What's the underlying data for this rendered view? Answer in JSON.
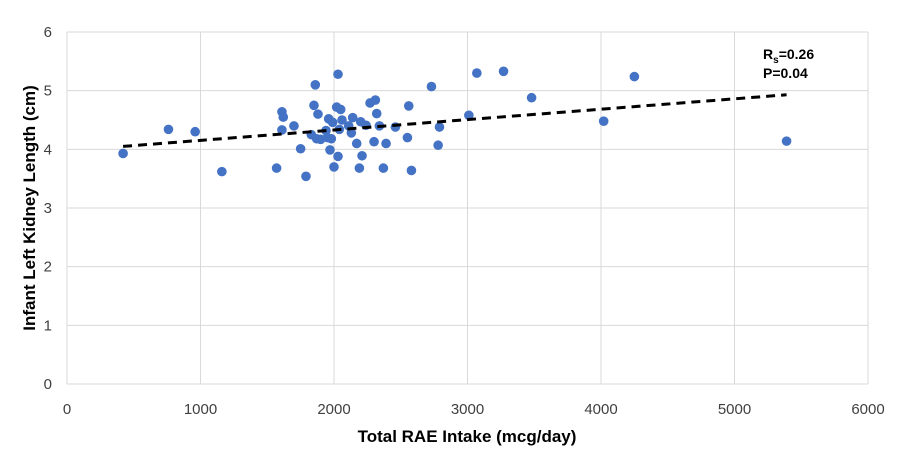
{
  "chart_data": {
    "type": "scatter",
    "xlabel": "Total RAE Intake (mcg/day)",
    "ylabel": "Infant Left Kidney Length (cm)",
    "xlim": [
      0,
      6000
    ],
    "ylim": [
      0,
      6
    ],
    "x_ticks": [
      "0",
      "1000",
      "2000",
      "3000",
      "4000",
      "5000",
      "6000"
    ],
    "y_ticks": [
      "0",
      "1",
      "2",
      "3",
      "4",
      "5",
      "6"
    ],
    "grid": true,
    "colors": {
      "points": "#4472c4",
      "trendline": "#000000",
      "grid": "#d9d9d9"
    },
    "annotation": {
      "r_main": "R",
      "r_sub": "s",
      "r_value": "=0.26",
      "p_text": "P=0.04"
    },
    "trendline": {
      "style": "dashed",
      "x": [
        420,
        5390
      ],
      "y": [
        4.05,
        4.93
      ]
    },
    "points": [
      {
        "x": 420,
        "y": 3.93
      },
      {
        "x": 760,
        "y": 4.34
      },
      {
        "x": 960,
        "y": 4.3
      },
      {
        "x": 1160,
        "y": 3.62
      },
      {
        "x": 1570,
        "y": 3.68
      },
      {
        "x": 1610,
        "y": 4.64
      },
      {
        "x": 1620,
        "y": 4.55
      },
      {
        "x": 1610,
        "y": 4.33
      },
      {
        "x": 1700,
        "y": 4.4
      },
      {
        "x": 1750,
        "y": 4.01
      },
      {
        "x": 1790,
        "y": 3.54
      },
      {
        "x": 1830,
        "y": 4.25
      },
      {
        "x": 1850,
        "y": 4.75
      },
      {
        "x": 1860,
        "y": 5.1
      },
      {
        "x": 1870,
        "y": 4.18
      },
      {
        "x": 1880,
        "y": 4.6
      },
      {
        "x": 1900,
        "y": 4.17
      },
      {
        "x": 1940,
        "y": 4.32
      },
      {
        "x": 1950,
        "y": 4.2
      },
      {
        "x": 1960,
        "y": 4.52
      },
      {
        "x": 1970,
        "y": 3.99
      },
      {
        "x": 1980,
        "y": 4.18
      },
      {
        "x": 1990,
        "y": 4.46
      },
      {
        "x": 2000,
        "y": 3.7
      },
      {
        "x": 2020,
        "y": 4.72
      },
      {
        "x": 2030,
        "y": 5.28
      },
      {
        "x": 2030,
        "y": 3.88
      },
      {
        "x": 2040,
        "y": 4.34
      },
      {
        "x": 2050,
        "y": 4.68
      },
      {
        "x": 2060,
        "y": 4.5
      },
      {
        "x": 2110,
        "y": 4.4
      },
      {
        "x": 2130,
        "y": 4.28
      },
      {
        "x": 2140,
        "y": 4.54
      },
      {
        "x": 2170,
        "y": 4.1
      },
      {
        "x": 2190,
        "y": 3.68
      },
      {
        "x": 2200,
        "y": 4.47
      },
      {
        "x": 2210,
        "y": 3.89
      },
      {
        "x": 2240,
        "y": 4.41
      },
      {
        "x": 2270,
        "y": 4.79
      },
      {
        "x": 2300,
        "y": 4.13
      },
      {
        "x": 2310,
        "y": 4.84
      },
      {
        "x": 2320,
        "y": 4.61
      },
      {
        "x": 2340,
        "y": 4.4
      },
      {
        "x": 2370,
        "y": 3.68
      },
      {
        "x": 2390,
        "y": 4.1
      },
      {
        "x": 2460,
        "y": 4.38
      },
      {
        "x": 2550,
        "y": 4.2
      },
      {
        "x": 2560,
        "y": 4.74
      },
      {
        "x": 2580,
        "y": 3.64
      },
      {
        "x": 2730,
        "y": 5.07
      },
      {
        "x": 2780,
        "y": 4.07
      },
      {
        "x": 2790,
        "y": 4.38
      },
      {
        "x": 3010,
        "y": 4.58
      },
      {
        "x": 3070,
        "y": 5.3
      },
      {
        "x": 3270,
        "y": 5.33
      },
      {
        "x": 3480,
        "y": 4.88
      },
      {
        "x": 4020,
        "y": 4.48
      },
      {
        "x": 4250,
        "y": 5.24
      },
      {
        "x": 5390,
        "y": 4.14
      }
    ]
  }
}
